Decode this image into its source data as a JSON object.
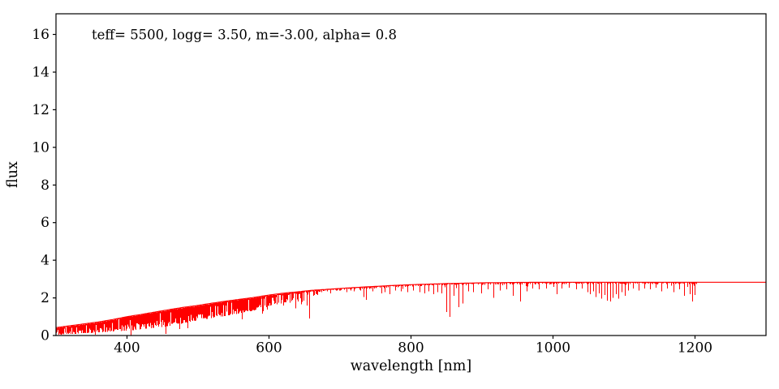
{
  "figure": {
    "background_color": "#ffffff",
    "axis_color": "#000000",
    "series_color": "#ff0000"
  },
  "chart_data": {
    "type": "line",
    "title": "teff= 5500, logg= 3.50, m=-3.00, alpha= 0.8",
    "xlabel": "wavelength [nm]",
    "ylabel": "flux",
    "xlim": [
      300,
      1300
    ],
    "ylim": [
      0,
      17.1
    ],
    "xticks": [
      400,
      600,
      800,
      1000,
      1200
    ],
    "yticks": [
      0,
      2,
      4,
      6,
      8,
      10,
      12,
      14,
      16
    ],
    "grid": false,
    "legend": null,
    "series_color": "#ff0000",
    "description": "Synthetic stellar spectrum: flux rises from ~0.4 at 300 nm to a flat continuum of ~2.83 beyond ~950 nm; dense absorption-line forest below ~670 nm, discrete absorption lines at longer wavelengths, clean flat line from ~1200 to 1300 nm",
    "plateau_flux": 2.83,
    "continuum": [
      [
        300,
        0.42
      ],
      [
        320,
        0.52
      ],
      [
        340,
        0.62
      ],
      [
        360,
        0.72
      ],
      [
        380,
        0.85
      ],
      [
        400,
        1.0
      ],
      [
        420,
        1.12
      ],
      [
        440,
        1.25
      ],
      [
        460,
        1.38
      ],
      [
        480,
        1.5
      ],
      [
        500,
        1.6
      ],
      [
        520,
        1.72
      ],
      [
        540,
        1.83
      ],
      [
        560,
        1.93
      ],
      [
        580,
        2.03
      ],
      [
        600,
        2.15
      ],
      [
        620,
        2.25
      ],
      [
        640,
        2.32
      ],
      [
        660,
        2.4
      ],
      [
        680,
        2.45
      ],
      [
        700,
        2.5
      ],
      [
        725,
        2.56
      ],
      [
        750,
        2.61
      ],
      [
        775,
        2.66
      ],
      [
        800,
        2.7
      ],
      [
        825,
        2.73
      ],
      [
        850,
        2.76
      ],
      [
        875,
        2.78
      ],
      [
        900,
        2.8
      ],
      [
        950,
        2.82
      ],
      [
        1000,
        2.83
      ],
      [
        1100,
        2.83
      ],
      [
        1200,
        2.83
      ],
      [
        1300,
        2.83
      ]
    ],
    "line_forest": {
      "wl_start": 300,
      "wl_end": 668,
      "fuzz_end": 1202,
      "lower_envelope": [
        [
          300,
          0.03
        ],
        [
          350,
          0.14
        ],
        [
          400,
          0.25
        ],
        [
          450,
          0.45
        ],
        [
          500,
          0.8
        ],
        [
          550,
          1.12
        ],
        [
          575,
          1.3
        ],
        [
          600,
          1.55
        ],
        [
          625,
          1.78
        ],
        [
          650,
          2.0
        ],
        [
          668,
          2.18
        ]
      ]
    },
    "strong_lines": [
      [
        629,
        1.75
      ],
      [
        633,
        1.9
      ],
      [
        637,
        1.45
      ],
      [
        641,
        1.8
      ],
      [
        645,
        1.65
      ],
      [
        649,
        1.85
      ],
      [
        653,
        1.6
      ],
      [
        656,
        0.9
      ],
      [
        662,
        2.1
      ],
      [
        668,
        2.15
      ],
      [
        674,
        2.3
      ],
      [
        686,
        2.25
      ],
      [
        700,
        2.4
      ],
      [
        709,
        2.3
      ],
      [
        719,
        2.35
      ],
      [
        728,
        2.4
      ],
      [
        733,
        2.05
      ],
      [
        737,
        1.9
      ],
      [
        746,
        2.35
      ],
      [
        758,
        2.25
      ],
      [
        763,
        2.3
      ],
      [
        770,
        2.2
      ],
      [
        778,
        2.4
      ],
      [
        786,
        2.35
      ],
      [
        795,
        2.3
      ],
      [
        803,
        2.4
      ],
      [
        812,
        2.3
      ],
      [
        819,
        2.25
      ],
      [
        825,
        2.35
      ],
      [
        831,
        2.2
      ],
      [
        837,
        2.3
      ],
      [
        843,
        2.25
      ],
      [
        850,
        1.25
      ],
      [
        854.5,
        1.0
      ],
      [
        860,
        2.1
      ],
      [
        866.5,
        1.5
      ],
      [
        873,
        1.7
      ],
      [
        880,
        2.35
      ],
      [
        887,
        2.3
      ],
      [
        899,
        2.25
      ],
      [
        908,
        2.45
      ],
      [
        916,
        2.0
      ],
      [
        925,
        2.4
      ],
      [
        934,
        2.45
      ],
      [
        943,
        2.1
      ],
      [
        954,
        1.8
      ],
      [
        963,
        2.35
      ],
      [
        971,
        2.5
      ],
      [
        980,
        2.45
      ],
      [
        990,
        2.5
      ],
      [
        1005,
        2.2
      ],
      [
        1012,
        2.5
      ],
      [
        1022,
        2.55
      ],
      [
        1032,
        2.45
      ],
      [
        1040,
        2.5
      ],
      [
        1048,
        2.3
      ],
      [
        1052,
        2.2
      ],
      [
        1056,
        2.35
      ],
      [
        1060,
        2.05
      ],
      [
        1064,
        2.25
      ],
      [
        1068,
        1.95
      ],
      [
        1072,
        2.15
      ],
      [
        1076,
        1.85
      ],
      [
        1080,
        1.8
      ],
      [
        1084,
        2.0
      ],
      [
        1088,
        2.2
      ],
      [
        1092,
        1.95
      ],
      [
        1096,
        2.3
      ],
      [
        1101,
        2.1
      ],
      [
        1106,
        2.4
      ],
      [
        1113,
        2.5
      ],
      [
        1120,
        2.4
      ],
      [
        1128,
        2.5
      ],
      [
        1137,
        2.45
      ],
      [
        1145,
        2.55
      ],
      [
        1152,
        2.35
      ],
      [
        1160,
        2.5
      ],
      [
        1170,
        2.3
      ],
      [
        1178,
        2.45
      ],
      [
        1185,
        2.1
      ],
      [
        1192,
        2.2
      ],
      [
        1196,
        1.8
      ],
      [
        1199,
        2.15
      ]
    ]
  }
}
